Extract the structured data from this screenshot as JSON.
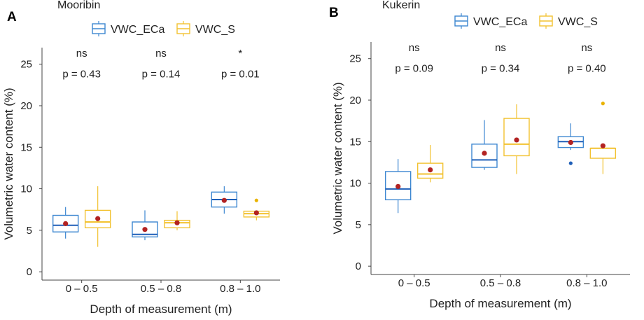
{
  "colors": {
    "eca": "#3d87d1",
    "eca_median": "#1f5fb8",
    "s": "#f2c230",
    "s_outlier": "#e9b300",
    "mean_dot": "#b22222",
    "axis": "#444444",
    "text": "#222222"
  },
  "chart_data": [
    {
      "panel_label": "A",
      "title": "Mooribin",
      "type": "box",
      "xlabel": "Depth of measurement (m)",
      "ylabel": "Volumetric water content (%)",
      "ylim": [
        -1,
        27
      ],
      "yticks": [
        0,
        5,
        10,
        15,
        20,
        25
      ],
      "categories": [
        "0 – 0.5",
        "0.5 – 0.8",
        "0.8 – 1.0"
      ],
      "legend": [
        "VWC_ECa",
        "VWC_S"
      ],
      "annotations": [
        {
          "sig": "ns",
          "p": "p = 0.43"
        },
        {
          "sig": "ns",
          "p": "p = 0.14"
        },
        {
          "sig": "*",
          "p": "p = 0.01"
        }
      ],
      "series": [
        {
          "name": "VWC_ECa",
          "boxes": [
            {
              "min": 4.0,
              "q1": 4.8,
              "median": 5.6,
              "q3": 6.8,
              "max": 7.8,
              "mean": 5.8,
              "outliers": []
            },
            {
              "min": 3.8,
              "q1": 4.2,
              "median": 4.5,
              "q3": 6.0,
              "max": 7.4,
              "mean": 5.1,
              "outliers": []
            },
            {
              "min": 7.0,
              "q1": 7.8,
              "median": 8.7,
              "q3": 9.6,
              "max": 10.3,
              "mean": 8.6,
              "outliers": []
            }
          ]
        },
        {
          "name": "VWC_S",
          "boxes": [
            {
              "min": 3.0,
              "q1": 5.3,
              "median": 6.0,
              "q3": 7.4,
              "max": 10.3,
              "mean": 6.4,
              "outliers": []
            },
            {
              "min": 5.0,
              "q1": 5.3,
              "median": 5.9,
              "q3": 6.2,
              "max": 7.3,
              "mean": 5.9,
              "outliers": []
            },
            {
              "min": 6.2,
              "q1": 6.6,
              "median": 7.0,
              "q3": 7.3,
              "max": 7.3,
              "mean": 7.1,
              "outliers": [
                8.6
              ]
            }
          ]
        }
      ]
    },
    {
      "panel_label": "B",
      "title": "Kukerin",
      "type": "box",
      "xlabel": "Depth of measurement (m)",
      "ylabel": "Volumetric water content (%)",
      "ylim": [
        -1,
        27
      ],
      "yticks": [
        0,
        5,
        10,
        15,
        20,
        25
      ],
      "categories": [
        "0 – 0.5",
        "0.5 – 0.8",
        "0.8 – 1.0"
      ],
      "legend": [
        "VWC_ECa",
        "VWC_S"
      ],
      "annotations": [
        {
          "sig": "ns",
          "p": "p = 0.09"
        },
        {
          "sig": "ns",
          "p": "p = 0.34"
        },
        {
          "sig": "ns",
          "p": "p = 0.40"
        }
      ],
      "series": [
        {
          "name": "VWC_ECa",
          "boxes": [
            {
              "min": 6.4,
              "q1": 8.0,
              "median": 9.3,
              "q3": 11.4,
              "max": 12.9,
              "mean": 9.6,
              "outliers": []
            },
            {
              "min": 11.6,
              "q1": 11.9,
              "median": 12.8,
              "q3": 14.7,
              "max": 17.6,
              "mean": 13.6,
              "outliers": []
            },
            {
              "min": 14.0,
              "q1": 14.3,
              "median": 15.0,
              "q3": 15.6,
              "max": 17.2,
              "mean": 14.9,
              "outliers": [
                12.4
              ]
            }
          ]
        },
        {
          "name": "VWC_S",
          "boxes": [
            {
              "min": 10.1,
              "q1": 10.6,
              "median": 11.1,
              "q3": 12.4,
              "max": 14.6,
              "mean": 11.6,
              "outliers": []
            },
            {
              "min": 11.1,
              "q1": 13.3,
              "median": 14.7,
              "q3": 17.8,
              "max": 19.5,
              "mean": 15.2,
              "outliers": []
            },
            {
              "min": 11.1,
              "q1": 13.0,
              "median": 14.2,
              "q3": 14.2,
              "max": 14.2,
              "mean": 14.5,
              "outliers": [
                19.6
              ]
            }
          ]
        }
      ]
    }
  ]
}
